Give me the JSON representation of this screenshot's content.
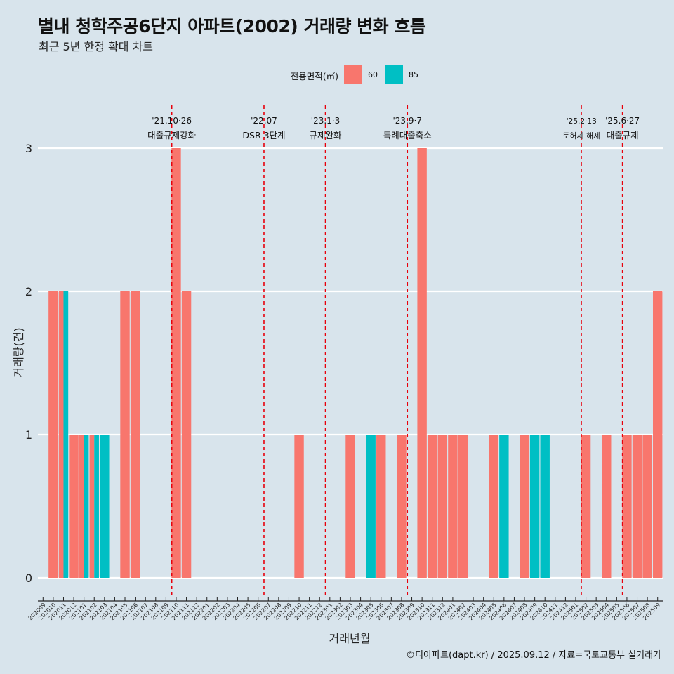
{
  "title": "별내 청학주공6단지 아파트(2002) 거래량 변화 흐름",
  "subtitle": "최근 5년 한정 확대 차트",
  "caption": "©디아파트(dapt.kr) / 2025.09.12 / 자료=국토교통부 실거래가",
  "colors": {
    "60": "#f8766d",
    "85": "#00bfc4",
    "background": "#d8e4ec",
    "event_line": "#e8000b",
    "grid": "#ffffff"
  },
  "chart_data": {
    "type": "bar",
    "xlabel": "거래년월",
    "ylabel": "거래량(건)",
    "ylim": [
      0,
      3
    ],
    "yticks": [
      0,
      1,
      2,
      3
    ],
    "legend": {
      "title": "전용면적(㎡)",
      "position": "top"
    },
    "categories": [
      "202009",
      "202010",
      "202011",
      "202012",
      "202101",
      "202102",
      "202103",
      "202104",
      "202105",
      "202106",
      "202107",
      "202108",
      "202109",
      "202110",
      "202111",
      "202112",
      "202201",
      "202202",
      "202203",
      "202204",
      "202205",
      "202206",
      "202207",
      "202208",
      "202209",
      "202210",
      "202211",
      "202212",
      "202301",
      "202302",
      "202303",
      "202304",
      "202305",
      "202306",
      "202307",
      "202308",
      "202309",
      "202310",
      "202311",
      "202312",
      "202401",
      "202402",
      "202403",
      "202404",
      "202405",
      "202406",
      "202407",
      "202408",
      "202409",
      "202410",
      "202411",
      "202412",
      "202501",
      "202502",
      "202503",
      "202504",
      "202505",
      "202506",
      "202507",
      "202508",
      "202509"
    ],
    "series": [
      {
        "name": "60",
        "values": [
          0,
          2,
          2,
          1,
          1,
          1,
          0,
          0,
          2,
          2,
          0,
          0,
          0,
          3,
          2,
          0,
          0,
          0,
          0,
          0,
          0,
          0,
          0,
          0,
          0,
          1,
          0,
          0,
          0,
          0,
          1,
          0,
          0,
          1,
          0,
          1,
          0,
          3,
          1,
          1,
          1,
          1,
          0,
          0,
          1,
          0,
          0,
          1,
          0,
          0,
          0,
          0,
          0,
          1,
          0,
          1,
          0,
          1,
          1,
          1,
          2
        ]
      },
      {
        "name": "85",
        "values": [
          0,
          0,
          2,
          0,
          1,
          1,
          1,
          0,
          0,
          0,
          0,
          0,
          0,
          0,
          0,
          0,
          0,
          0,
          0,
          0,
          0,
          0,
          0,
          0,
          0,
          0,
          0,
          0,
          0,
          0,
          0,
          0,
          1,
          0,
          0,
          0,
          0,
          0,
          0,
          0,
          0,
          0,
          0,
          0,
          0,
          1,
          0,
          0,
          1,
          1,
          0,
          0,
          0,
          0,
          0,
          0,
          0,
          0,
          0,
          0,
          0
        ]
      }
    ],
    "annotations": [
      {
        "x": "202110",
        "date": "'21.10·26",
        "label": "대출규제강화"
      },
      {
        "x": "202207",
        "date": "'22.07",
        "label": "DSR 3단계"
      },
      {
        "x": "202301",
        "date": "'23.1·3",
        "label": "규제완화"
      },
      {
        "x": "202309",
        "date": "'23.9·7",
        "label": "특례대출축소"
      },
      {
        "x": "202502",
        "date": "'25.2·13",
        "label": "토허제 해제"
      },
      {
        "x": "202506",
        "date": "'25.6·27",
        "label": "대출규제"
      }
    ]
  }
}
